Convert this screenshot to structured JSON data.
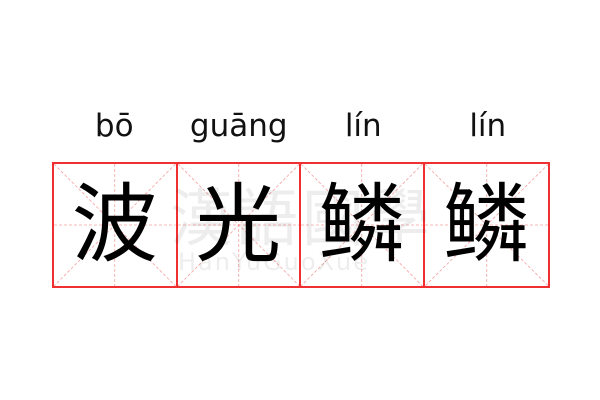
{
  "pinyin": [
    "bō",
    "guāng",
    "lín",
    "lín"
  ],
  "characters": [
    "波",
    "光",
    "鳞",
    "鳞"
  ],
  "watermark": {
    "text": "漢語國學",
    "latin": "HanYuGuoXue"
  },
  "colors": {
    "grid_border": "#f03030",
    "guide_lines": "#f7a0a0",
    "text": "#000000"
  }
}
